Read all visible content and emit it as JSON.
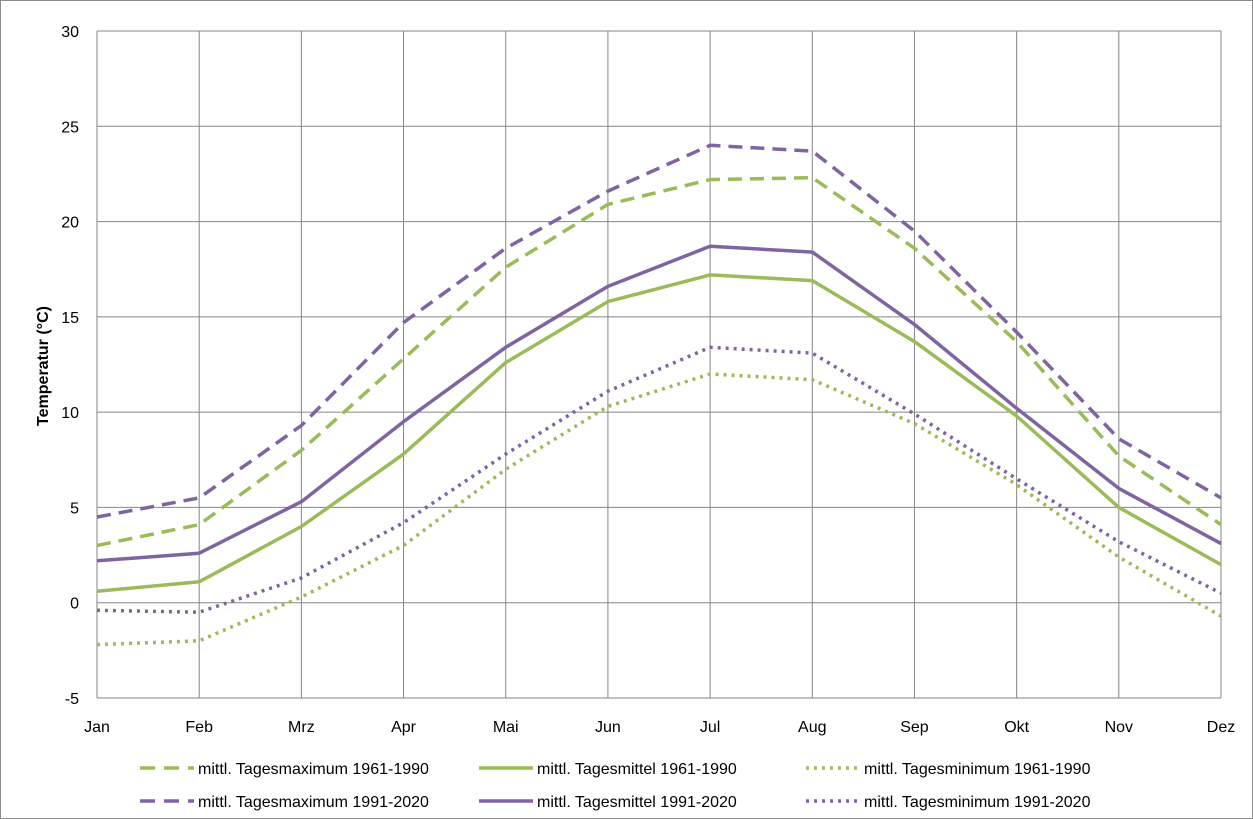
{
  "chart_data": {
    "type": "line",
    "title": "",
    "xlabel": "",
    "ylabel": "Temperatur (°C)",
    "ylim": [
      -5,
      30
    ],
    "yticks": [
      "-5",
      "0",
      "5",
      "10",
      "15",
      "20",
      "25",
      "30"
    ],
    "grid": true,
    "legend_position": "bottom",
    "categories": [
      "Jan",
      "Feb",
      "Mrz",
      "Apr",
      "Mai",
      "Jun",
      "Jul",
      "Aug",
      "Sep",
      "Okt",
      "Nov",
      "Dez"
    ],
    "series": [
      {
        "name": "mittl. Tagesmaximum 1961-1990",
        "color": "#9bbb59",
        "style": "dashed",
        "values": [
          3.0,
          4.1,
          8.0,
          12.8,
          17.6,
          20.9,
          22.2,
          22.3,
          18.6,
          13.7,
          7.7,
          4.1
        ]
      },
      {
        "name": "mittl. Tagesmittel 1961-1990",
        "color": "#9bbb59",
        "style": "solid",
        "values": [
          0.6,
          1.1,
          4.0,
          7.8,
          12.6,
          15.8,
          17.2,
          16.9,
          13.7,
          9.8,
          5.0,
          2.0
        ]
      },
      {
        "name": "mittl. Tagesminimum 1961-1990",
        "color": "#9bbb59",
        "style": "dotted",
        "values": [
          -2.2,
          -2.0,
          0.3,
          3.0,
          7.0,
          10.3,
          12.0,
          11.7,
          9.4,
          6.2,
          2.4,
          -0.7
        ]
      },
      {
        "name": "mittl. Tagesmaximum 1991-2020",
        "color": "#8064a2",
        "style": "dashed",
        "values": [
          4.5,
          5.5,
          9.3,
          14.7,
          18.6,
          21.6,
          24.0,
          23.7,
          19.5,
          14.2,
          8.6,
          5.5
        ]
      },
      {
        "name": "mittl. Tagesmittel 1991-2020",
        "color": "#8064a2",
        "style": "solid",
        "values": [
          2.2,
          2.6,
          5.3,
          9.5,
          13.4,
          16.6,
          18.7,
          18.4,
          14.6,
          10.2,
          6.0,
          3.1
        ]
      },
      {
        "name": "mittl. Tagesminimum 1991-2020",
        "color": "#8064a2",
        "style": "dotted",
        "values": [
          -0.4,
          -0.5,
          1.3,
          4.2,
          7.8,
          11.1,
          13.4,
          13.1,
          9.9,
          6.5,
          3.2,
          0.5
        ]
      }
    ]
  }
}
